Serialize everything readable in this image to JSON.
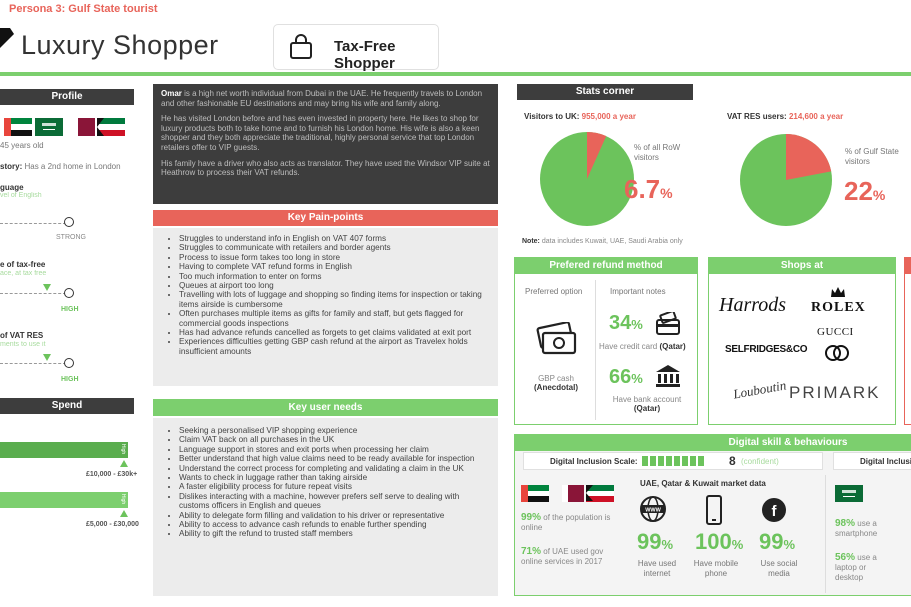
{
  "header": {
    "persona_label": "Persona 3: Gulf State tourist",
    "persona_title": "Luxury Shopper",
    "badge_label": "Tax-Free Shopper"
  },
  "profile": {
    "heading": "Profile",
    "age": "45 years old",
    "history_label": "story:",
    "history_text": "Has a 2nd home in London",
    "language_title": "guage",
    "language_sub": "vel of English",
    "language_level": "STRONG",
    "taxfree_title": "e of tax-free",
    "taxfree_sub": "ace, at tax free",
    "taxfree_level": "HIGH",
    "vatres_title": "of VAT RES",
    "vatres_sub": "ments to use it",
    "vatres_level": "HIGH"
  },
  "spend": {
    "heading": "Spend",
    "bar1_end": "High",
    "bar1_range": "£10,000 - £30k+",
    "bar2_end": "High",
    "bar2_range": "£5,000 - £30,000"
  },
  "story": {
    "name": "Omar",
    "p1_rest": " is a high net worth individual from Dubai in the UAE. He frequently travels to London and other fashionable EU destinations and may bring his wife and family along.",
    "p2": "He has visited London before and has even invested in property here. He likes to shop for luxury products both to take home and to furnish his London home. His wife is also a keen shopper and they both appreciate the traditional, highly personal service that top London retailers offer to VIP guests.",
    "p3": "His family have a driver who also acts as translator. They have used the Windsor VIP suite at Heathrow to process their VAT refunds."
  },
  "pain_points": {
    "heading": "Key Pain-points",
    "items": [
      "Struggles to understand info in English on VAT 407 forms",
      "Struggles to communicate with retailers and border agents",
      "Process  to issue form takes too long in store",
      "Having to complete VAT refund forms in English",
      "Too much information to enter on forms",
      "Queues at airport too long",
      "Travelling with lots of luggage and shopping so finding items for inspection or taking items airside is cumbersome",
      "Often purchases multiple items as gifts for family and staff, but gets flagged for commercial goods inspections",
      "Has had advance refunds cancelled as forgets to get claims validated at exit port",
      "Experiences difficulties getting GBP cash refund at the airport as Travelex holds insufficient amounts"
    ]
  },
  "user_needs": {
    "heading": "Key user needs",
    "items": [
      "Seeking a personalised VIP shopping experience",
      "Claim VAT back on all purchases in the UK",
      "Language support in stores and exit ports when processing her claim",
      "Better understand that high value claims need to be ready available for inspection",
      "Understand the correct process for completing and validating a claim in the UK",
      "Wants to check in luggage rather than taking airside",
      "A faster eligibility process for future repeat visits",
      "Dislikes interacting with a machine, however prefers self serve to dealing with customs officers in English and queues",
      "Ability to delegate form filling and validation to his driver or representative",
      "Ability to access to advance cash refunds to enable further spending",
      "Ability to gift the refund to trusted staff members"
    ]
  },
  "stats": {
    "heading": "Stats corner",
    "visitors_label": "Visitors to UK:",
    "visitors_value": "955,000 a year",
    "visitors_desc": "% of all RoW visitors",
    "visitors_pct": "6.7",
    "visitors_fraction": 0.067,
    "vatres_label": "VAT RES users:",
    "vatres_value": "214,600 a year",
    "vatres_desc": "% of Gulf State visitors",
    "vatres_pct": "22",
    "vatres_fraction": 0.22,
    "pct_sign": "%",
    "note_label": "Note:",
    "note_text": "data includes Kuwait, UAE, Saudi Arabia only",
    "colors": {
      "green": "#6cc35c",
      "red": "#e8645a"
    }
  },
  "refund": {
    "heading": "Prefered refund method",
    "col1": "Preferred option",
    "col2": "Important notes",
    "option_line1": "GBP cash",
    "option_line2": "(Anecdotal)",
    "credit_pct": "34",
    "credit_text": "Have credit card",
    "credit_country": "(Qatar)",
    "bank_pct": "66",
    "bank_text": "Have bank account",
    "bank_country": "(Qatar)"
  },
  "shops": {
    "heading": "Shops at",
    "harrods": "Harrods",
    "rolex": "ROLEX",
    "gucci": "GUCCI",
    "selfridges": "SELFRIDGES&CO",
    "louboutin": "Louboutin",
    "primark": "PRIMARK"
  },
  "digital": {
    "heading": "Digital skill & behaviours",
    "scale_label": "Digital Inclusion Scale:",
    "scale_value": "8",
    "scale_sub": "(confident)",
    "scale_fraction": 0.8,
    "scale_label_2": "Digital Inclusion",
    "uae_pop_pct": "99%",
    "uae_pop_text": "of the population is online",
    "uae_gov_pct": "71%",
    "uae_gov_text": "of UAE used gov online services in 2017",
    "market_title": "UAE, Qatar & Kuwait market data",
    "m1_pct": "99",
    "m1_text": "Have used internet",
    "m2_pct": "100",
    "m2_text": "Have mobile phone",
    "m3_pct": "99",
    "m3_text": "Use social media",
    "pct_sign": "%",
    "sa_smart_pct": "98%",
    "sa_smart_text": "use a smartphone",
    "sa_laptop_pct": "56%",
    "sa_laptop_text": "use a laptop or desktop"
  }
}
